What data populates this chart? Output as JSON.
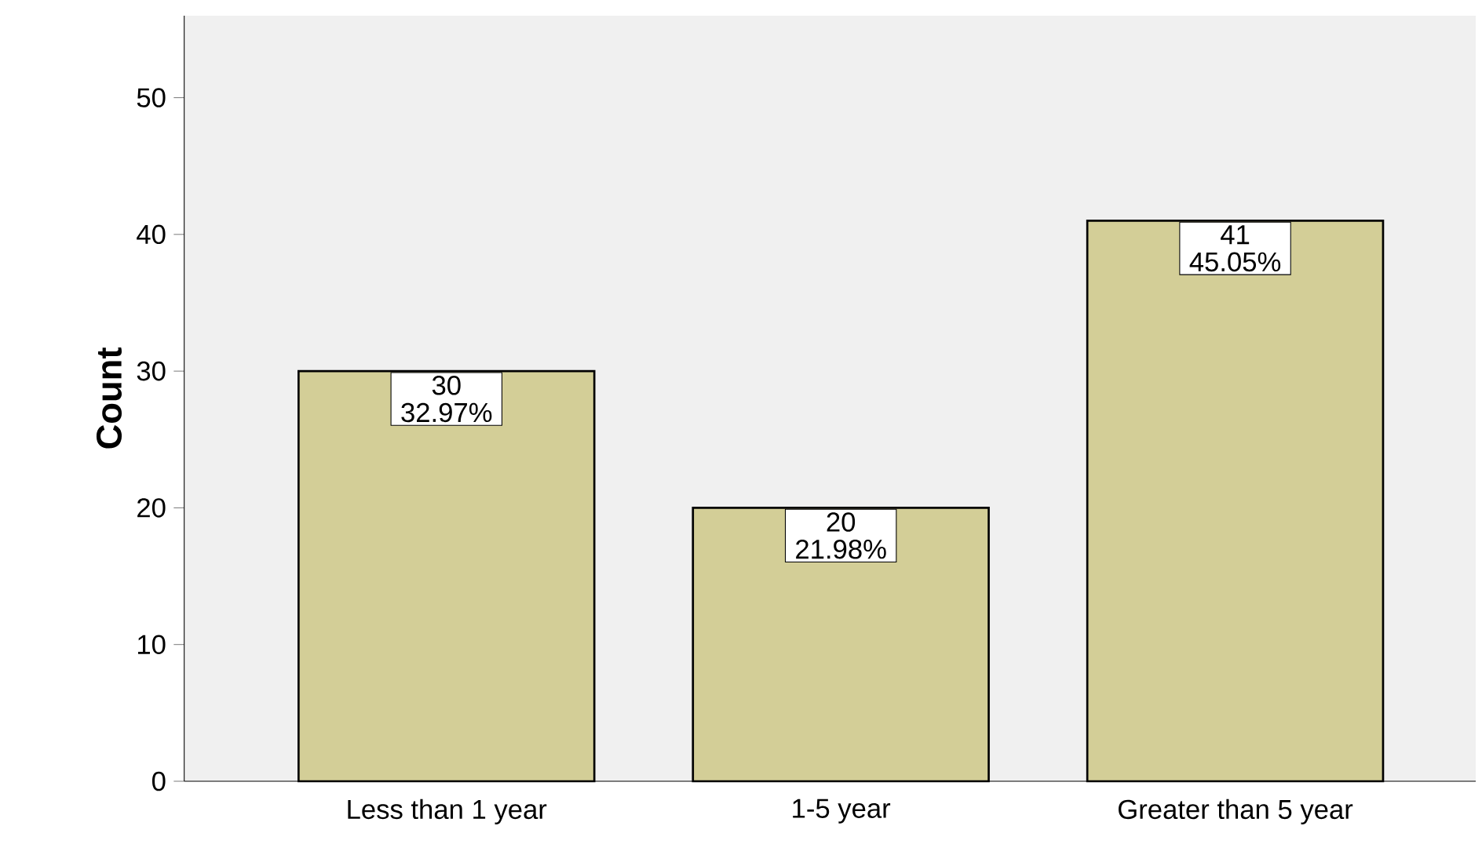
{
  "chart_data": {
    "type": "bar",
    "ylabel": "Count",
    "categories": [
      "Less than 1 year",
      "1-5 year",
      "Greater than 5 year"
    ],
    "values": [
      30,
      20,
      41
    ],
    "value_labels": [
      "30 32.97%",
      "20 21.98%",
      "41 45.05%"
    ],
    "color": "#d3ce97",
    "ylim": [
      0,
      56
    ],
    "yticks": [
      0,
      10,
      20,
      30,
      40,
      50
    ]
  }
}
